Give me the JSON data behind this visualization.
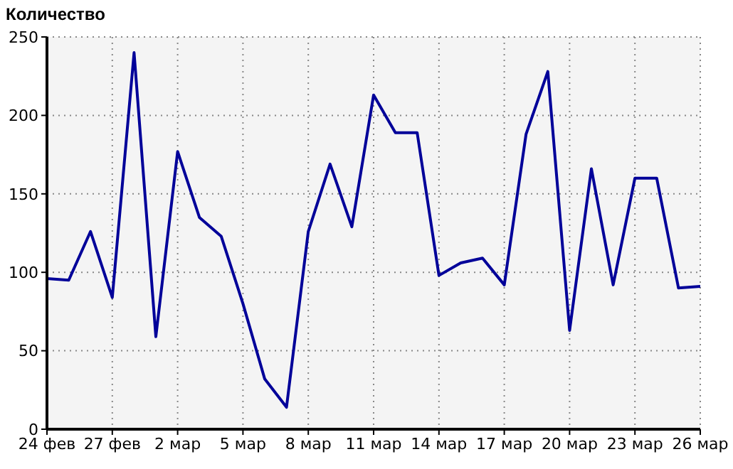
{
  "chart_data": {
    "type": "line",
    "ylabel": "Количество",
    "x": [
      "--02-24",
      "--02-25",
      "--02-26",
      "--02-27",
      "--02-28",
      "--03-01",
      "--03-02",
      "--03-03",
      "--03-04",
      "--03-05",
      "--03-06",
      "--03-07",
      "--03-08",
      "--03-09",
      "--03-10",
      "--03-11",
      "--03-12",
      "--03-13",
      "--03-14",
      "--03-15",
      "--03-16",
      "--03-17",
      "--03-18",
      "--03-19",
      "--03-20",
      "--03-21",
      "--03-22",
      "--03-23",
      "--03-24",
      "--03-25",
      "--03-26"
    ],
    "series": [
      {
        "color": "#000099",
        "values": [
          96,
          95,
          126,
          84,
          240,
          59,
          177,
          135,
          123,
          80,
          32,
          14,
          126,
          169,
          129,
          213,
          189,
          189,
          98,
          106,
          109,
          92,
          188,
          228,
          63,
          166,
          92,
          160,
          160,
          90,
          91
        ]
      }
    ],
    "xlim": [
      "--02-24",
      "--03-26"
    ],
    "xticks": [
      {
        "value": "--02-24",
        "label": "24 фев"
      },
      {
        "value": "--02-27",
        "label": "27 фев"
      },
      {
        "value": "--03-02",
        "label": "2 мар"
      },
      {
        "value": "--03-05",
        "label": "5 мар"
      },
      {
        "value": "--03-08",
        "label": "8 мар"
      },
      {
        "value": "--03-11",
        "label": "11 мар"
      },
      {
        "value": "--03-14",
        "label": "14 мар"
      },
      {
        "value": "--03-17",
        "label": "17 мар"
      },
      {
        "value": "--03-20",
        "label": "20 мар"
      },
      {
        "value": "--03-23",
        "label": "23 мар"
      },
      {
        "value": "--03-26",
        "label": "26 мар"
      }
    ],
    "ylim": [
      0,
      250
    ],
    "yticks": [
      0,
      50,
      100,
      150,
      200,
      250
    ],
    "grid": true,
    "marker": "none",
    "line_style": "solid",
    "legend": false
  }
}
